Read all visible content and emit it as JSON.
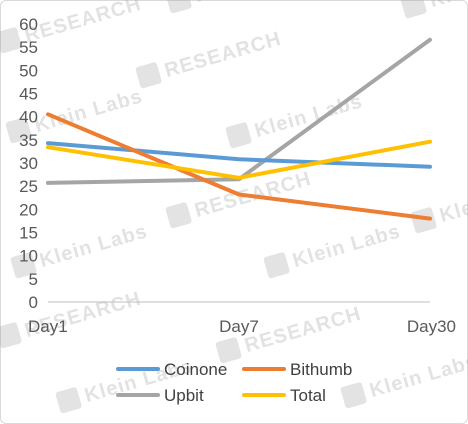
{
  "chart_data": {
    "type": "line",
    "categories": [
      "Day1",
      "Day7",
      "Day30"
    ],
    "series": [
      {
        "name": "Coinone",
        "color": "#5b9bd5",
        "values": [
          34.3,
          30.8,
          29.2
        ]
      },
      {
        "name": "Bithumb",
        "color": "#ed7d31",
        "values": [
          40.5,
          23.2,
          18.0
        ]
      },
      {
        "name": "Upbit",
        "color": "#a5a5a5",
        "values": [
          25.7,
          26.5,
          56.6
        ]
      },
      {
        "name": "Total",
        "color": "#ffc000",
        "values": [
          33.4,
          26.8,
          34.6
        ]
      }
    ],
    "ylim": [
      0,
      60
    ],
    "yticks": [
      0,
      5,
      10,
      15,
      20,
      25,
      30,
      35,
      40,
      45,
      50,
      55,
      60
    ],
    "grid": false,
    "legend_position": "bottom"
  },
  "watermark": {
    "logo_text": "Klein Labs",
    "research_text": "RESEARCH"
  }
}
